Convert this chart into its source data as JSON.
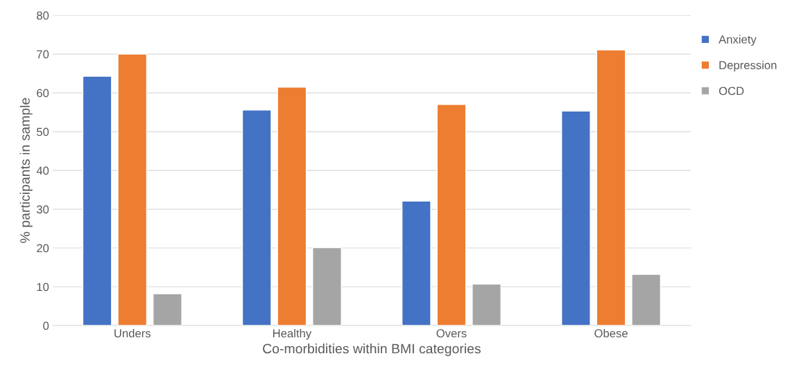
{
  "chart_data": {
    "type": "bar",
    "xlabel": "Co-morbidities within BMI categories",
    "ylabel": "% participants in sample",
    "categories": [
      "Unders",
      "Healthy",
      "Overs",
      "Obese"
    ],
    "series": [
      {
        "name": "Anxiety",
        "color": "#4472c4",
        "values": [
          64.3,
          55.6,
          32.1,
          55.3
        ]
      },
      {
        "name": "Depression",
        "color": "#ed7d31",
        "values": [
          70,
          61.5,
          57,
          71.1
        ]
      },
      {
        "name": "OCD",
        "color": "#a5a5a5",
        "values": [
          8.2,
          20.1,
          10.7,
          13.2
        ]
      }
    ],
    "ylim": [
      0,
      80
    ],
    "yticks": [
      0,
      10,
      20,
      30,
      40,
      50,
      60,
      70,
      80
    ],
    "grid": "y",
    "legend": "top right"
  }
}
